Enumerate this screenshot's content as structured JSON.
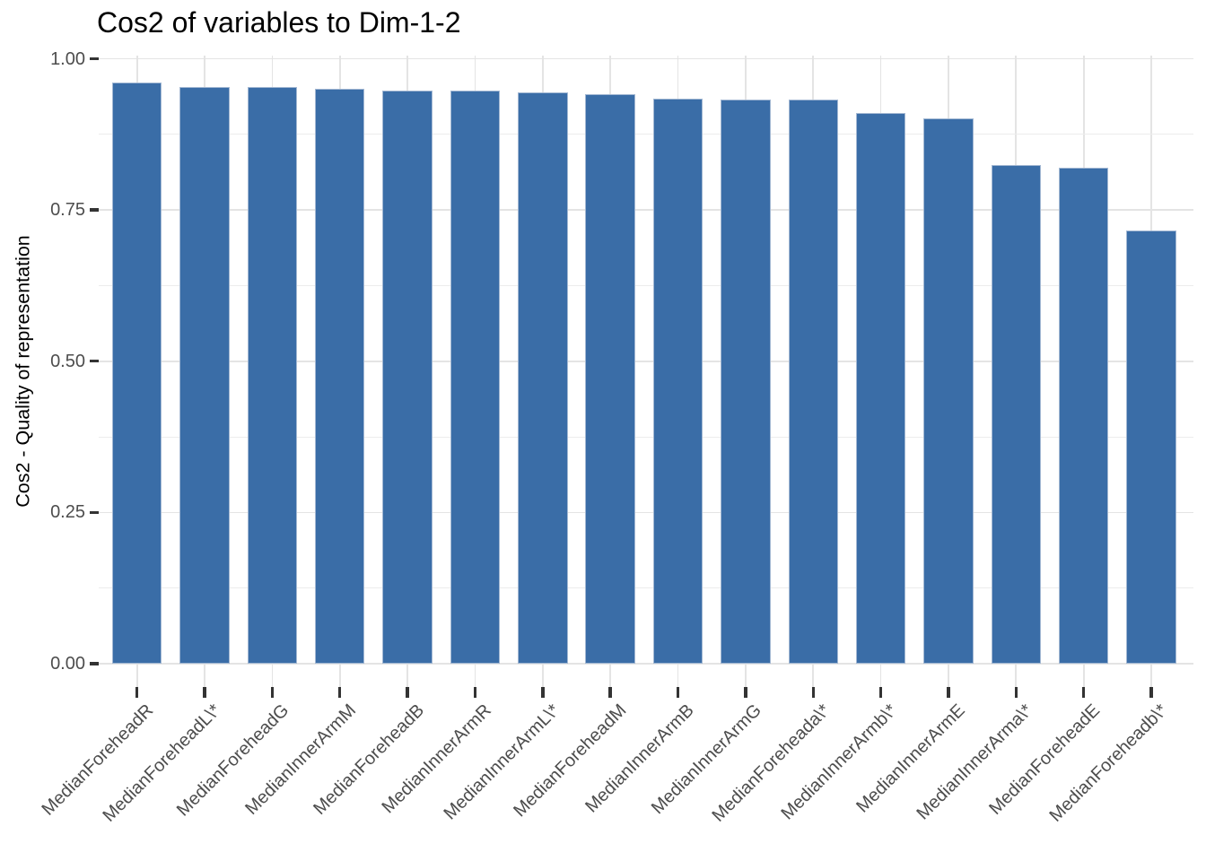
{
  "chart_data": {
    "type": "bar",
    "title": "Cos2 of variables to Dim-1-2",
    "xlabel": "",
    "ylabel": "Cos2 - Quality of representation",
    "categories": [
      "MedianForeheadR",
      "MedianForeheadL\\*",
      "MedianForeheadG",
      "MedianInnerArmM",
      "MedianForeheadB",
      "MedianInnerArmR",
      "MedianInnerArmL\\*",
      "MedianForeheadM",
      "MedianInnerArmB",
      "MedianInnerArmG",
      "MedianForeheada\\*",
      "MedianInnerArmb\\*",
      "MedianInnerArmE",
      "MedianInnerArma\\*",
      "MedianForeheadE",
      "MedianForeheadb\\*"
    ],
    "values": [
      0.961,
      0.953,
      0.953,
      0.951,
      0.948,
      0.947,
      0.944,
      0.942,
      0.934,
      0.933,
      0.933,
      0.911,
      0.901,
      0.824,
      0.82,
      0.716
    ],
    "ylim": [
      0,
      1.0
    ],
    "yticks": [
      0,
      0.25,
      0.5,
      0.75,
      1.0
    ],
    "ytick_labels": [
      "0.00",
      "0.25",
      "0.50",
      "0.75",
      "1.00"
    ],
    "minor_gridlines": [
      0.125,
      0.375,
      0.625,
      0.875
    ],
    "grid": true,
    "legend_position": "none",
    "x_label_angle": -45,
    "bar_color": "#3A6DA7",
    "bar_border_color": "#A3B8D3",
    "grid_major_color": "#E4E4E4",
    "grid_minor_color": "#ECECEC",
    "tick_color": "#333333",
    "tick_label_color": "#4D4D4D",
    "title_color": "#000000",
    "background_color": "#FFFFFF"
  }
}
